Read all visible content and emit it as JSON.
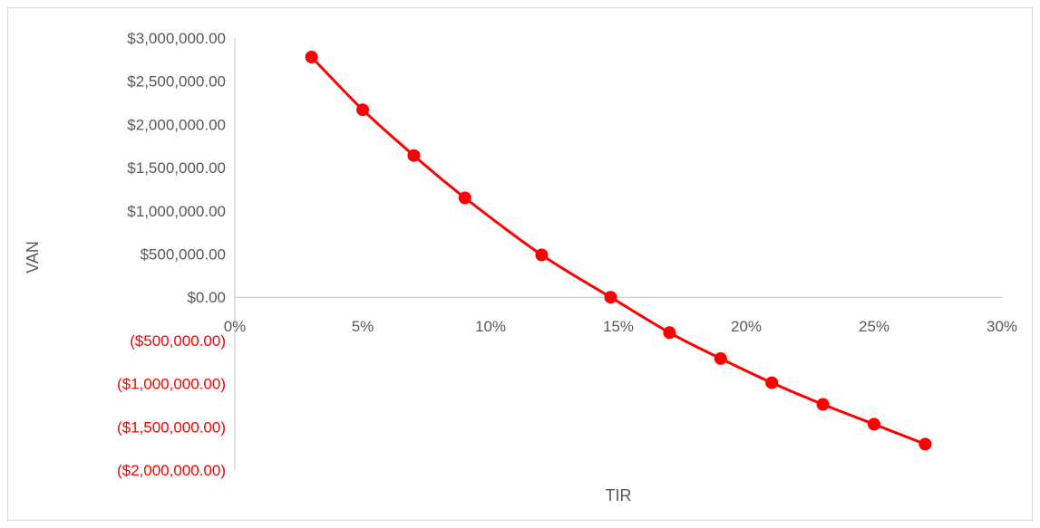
{
  "chart_data": {
    "type": "line",
    "title": "",
    "xlabel": "TIR",
    "ylabel": "VAN",
    "xlim": [
      0,
      0.3
    ],
    "ylim": [
      -2000000,
      3000000
    ],
    "x_ticks": [
      0,
      0.05,
      0.1,
      0.15,
      0.2,
      0.25,
      0.3
    ],
    "x_tick_labels": [
      "0%",
      "5%",
      "10%",
      "15%",
      "20%",
      "25%",
      "30%"
    ],
    "y_ticks": [
      3000000,
      2500000,
      2000000,
      1500000,
      1000000,
      500000,
      0,
      -500000,
      -1000000,
      -1500000,
      -2000000
    ],
    "y_tick_labels": [
      "$3,000,000.00",
      "$2,500,000.00",
      "$2,000,000.00",
      "$1,500,000.00",
      "$1,000,000.00",
      "$500,000.00",
      "$0.00",
      "($500,000.00)",
      "($1,000,000.00)",
      "($1,500,000.00)",
      "($2,000,000.00)"
    ],
    "negative_label_color": "#ff0000",
    "series_color": "#ff0000",
    "grid": false,
    "legend": "none",
    "series": [
      {
        "x": [
          0.03,
          0.05,
          0.07,
          0.09,
          0.12,
          0.147,
          0.17,
          0.19,
          0.21,
          0.23,
          0.25,
          0.27
        ],
        "y": [
          2780000,
          2170000,
          1640000,
          1150000,
          490000,
          0,
          -410000,
          -710000,
          -990000,
          -1240000,
          -1470000,
          -1700000
        ]
      }
    ]
  }
}
